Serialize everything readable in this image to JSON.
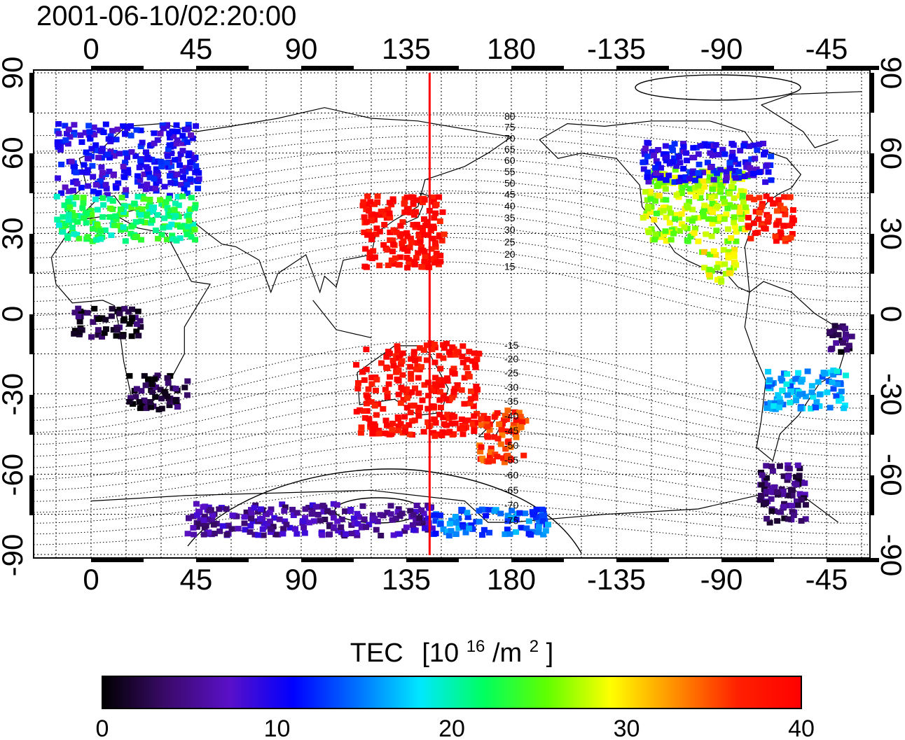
{
  "timestamp": "2001-06-10/02:20:00",
  "colorbar": {
    "title_main": "TEC",
    "title_unit_prefix": "[10",
    "title_unit_exp": "16",
    "title_unit_mid": "/m",
    "title_unit_exp2": "2",
    "title_unit_suffix": "]",
    "ticks": [
      "0",
      "10",
      "20",
      "30",
      "40"
    ],
    "range": [
      0,
      40
    ],
    "colors": [
      "#000000",
      "#3a0a6a",
      "#5a10c8",
      "#0000ff",
      "#0070ff",
      "#00e8ff",
      "#00ff60",
      "#60ff00",
      "#ffff00",
      "#ff9000",
      "#ff2000",
      "#ff0000"
    ]
  },
  "map": {
    "lon_ticks_top": [
      "0",
      "45",
      "90",
      "135",
      "180",
      "-135",
      "-90",
      "-45"
    ],
    "lon_ticks_bottom": [
      "0",
      "45",
      "90",
      "135",
      "180",
      "-135",
      "-90",
      "-45"
    ],
    "lat_ticks_left": [
      "90",
      "60",
      "30",
      "0",
      "-30",
      "-60",
      "-90"
    ],
    "lat_ticks_right": [
      "90",
      "60",
      "30",
      "0",
      "-30",
      "-60",
      "-90"
    ],
    "marker_line_color": "#ff0000",
    "contour_labels": [
      "80",
      "75",
      "70",
      "65",
      "60",
      "55",
      "50",
      "45",
      "40",
      "35",
      "30",
      "25",
      "20",
      "15",
      "-15",
      "-20",
      "-25",
      "-30",
      "-35",
      "-40",
      "-45",
      "-50",
      "-55",
      "-60",
      "-65",
      "-70",
      "-75"
    ]
  },
  "chart_data": {
    "type": "heatmap",
    "title": "2001-06-10/02:20:00",
    "quantity": "TEC",
    "unit": "10^16/m^2",
    "value_range": [
      0,
      40
    ],
    "longitude_ticks": [
      0,
      45,
      90,
      135,
      180,
      -135,
      -90,
      -45
    ],
    "latitude_ticks": [
      90,
      60,
      30,
      0,
      -30,
      -60,
      -90
    ],
    "marker_longitude": 145,
    "regions": [
      {
        "lon": [
          -16,
          45
        ],
        "lat": [
          45,
          72
        ],
        "tec": 10
      },
      {
        "lon": [
          -16,
          45
        ],
        "lat": [
          28,
          45
        ],
        "tec": 22
      },
      {
        "lon": [
          15,
          40
        ],
        "lat": [
          -35,
          -22
        ],
        "tec": 2
      },
      {
        "lon": [
          -10,
          20
        ],
        "lat": [
          -8,
          3
        ],
        "tec": 2
      },
      {
        "lon": [
          115,
          150
        ],
        "lat": [
          18,
          45
        ],
        "tec": 39
      },
      {
        "lon": [
          112,
          165
        ],
        "lat": [
          -45,
          -10
        ],
        "tec": 39
      },
      {
        "lon": [
          165,
          185
        ],
        "lat": [
          -55,
          -35
        ],
        "tec": 36
      },
      {
        "lon": [
          -125,
          -80
        ],
        "lat": [
          28,
          55
        ],
        "tec": 27
      },
      {
        "lon": [
          -80,
          -60
        ],
        "lat": [
          28,
          45
        ],
        "tec": 38
      },
      {
        "lon": [
          -125,
          -70
        ],
        "lat": [
          50,
          65
        ],
        "tec": 10
      },
      {
        "lon": [
          -100,
          -85
        ],
        "lat": [
          12,
          25
        ],
        "tec": 28
      },
      {
        "lon": [
          -72,
          -38
        ],
        "lat": [
          -35,
          -20
        ],
        "tec": 16
      },
      {
        "lon": [
          -45,
          -35
        ],
        "lat": [
          -15,
          -3
        ],
        "tec": 3
      },
      {
        "lon": [
          -75,
          -55
        ],
        "lat": [
          -78,
          -55
        ],
        "tec": 4
      },
      {
        "lon": [
          40,
          145
        ],
        "lat": [
          -82,
          -70
        ],
        "tec": 6
      },
      {
        "lon": [
          145,
          195
        ],
        "lat": [
          -82,
          -72
        ],
        "tec": 14
      }
    ]
  }
}
